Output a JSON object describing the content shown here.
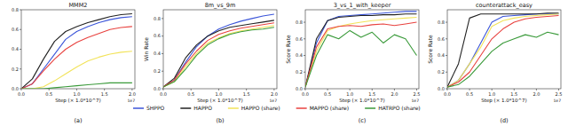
{
  "chart_data": [
    {
      "type": "line",
      "title": "MMM2",
      "subtitle": "(a)",
      "x_label": "Step (× 1.0*10^7)",
      "annotations": [
        "1e7"
      ],
      "x": [
        0,
        0.2,
        0.4,
        0.6,
        0.8,
        1.0,
        1.2,
        1.4,
        1.6,
        1.8,
        2.0
      ],
      "xlim": [
        0,
        2.05
      ],
      "xticks": [
        {
          "value": 0,
          "label": "0.0"
        },
        0.5,
        {
          "value": 1,
          "label": "1.0"
        },
        1.5,
        {
          "value": 2,
          "label": "2.0"
        }
      ],
      "ylim": [
        0,
        0.8
      ],
      "yticks": [
        {
          "value": 0,
          "label": "0.0"
        },
        0.2,
        0.4,
        0.6,
        0.8
      ],
      "grid": false,
      "legend": "bottom",
      "series": [
        {
          "name": "SHPPO",
          "color": "#3b55d9",
          "values": [
            0,
            0.05,
            0.2,
            0.35,
            0.5,
            0.58,
            0.63,
            0.67,
            0.7,
            0.72,
            0.73
          ]
        },
        {
          "name": "HAPPO",
          "color": "#222222",
          "values": [
            0,
            0.1,
            0.3,
            0.48,
            0.58,
            0.63,
            0.67,
            0.7,
            0.73,
            0.75,
            0.76
          ]
        },
        {
          "name": "HAPPO (share)",
          "color": "#f2e35a",
          "values": [
            0,
            0,
            0.02,
            0.08,
            0.15,
            0.22,
            0.28,
            0.32,
            0.35,
            0.37,
            0.38
          ]
        },
        {
          "name": "MAPPO (share)",
          "color": "#e8423f",
          "values": [
            0,
            0.05,
            0.18,
            0.3,
            0.4,
            0.47,
            0.52,
            0.56,
            0.6,
            0.62,
            0.63
          ]
        },
        {
          "name": "HATRPO (share)",
          "color": "#3a9a3a",
          "values": [
            0,
            0,
            0,
            0.01,
            0.02,
            0.03,
            0.04,
            0.05,
            0.06,
            0.06,
            0.06
          ]
        }
      ]
    },
    {
      "type": "line",
      "title": "8m_vs_9m",
      "subtitle": "(b)",
      "x_label": "Step (× 1.0*10^7)",
      "y_label": "Win Rate",
      "annotations": [
        "1e7"
      ],
      "x": [
        0,
        0.2,
        0.4,
        0.6,
        0.8,
        1.0,
        1.2,
        1.4,
        1.6,
        1.8,
        2.0
      ],
      "xlim": [
        0,
        2.05
      ],
      "xticks": [
        {
          "value": 0,
          "label": "0.0"
        },
        0.5,
        {
          "value": 1,
          "label": "1.0"
        },
        1.5,
        {
          "value": 2,
          "label": "2.0"
        }
      ],
      "ylim": [
        0,
        0.9
      ],
      "yticks": [
        {
          "value": 0,
          "label": "0.0"
        },
        0.2,
        0.4,
        0.6,
        0.8
      ],
      "grid": false,
      "series": [
        {
          "name": "SHPPO",
          "color": "#3b55d9",
          "values": [
            0.02,
            0.1,
            0.3,
            0.48,
            0.6,
            0.68,
            0.73,
            0.77,
            0.8,
            0.83,
            0.85
          ]
        },
        {
          "name": "HAPPO",
          "color": "#222222",
          "values": [
            0.02,
            0.12,
            0.35,
            0.5,
            0.6,
            0.66,
            0.7,
            0.72,
            0.74,
            0.76,
            0.78
          ]
        },
        {
          "name": "HAPPO (share)",
          "color": "#f2e35a",
          "values": [
            0.02,
            0.08,
            0.25,
            0.4,
            0.52,
            0.58,
            0.63,
            0.66,
            0.68,
            0.7,
            0.72
          ]
        },
        {
          "name": "MAPPO (share)",
          "color": "#e8423f",
          "values": [
            0.02,
            0.1,
            0.28,
            0.43,
            0.55,
            0.62,
            0.66,
            0.69,
            0.71,
            0.73,
            0.75
          ]
        },
        {
          "name": "HATRPO (share)",
          "color": "#3a9a3a",
          "values": [
            0.02,
            0.08,
            0.22,
            0.38,
            0.5,
            0.57,
            0.62,
            0.65,
            0.67,
            0.68,
            0.7
          ]
        }
      ]
    },
    {
      "type": "line",
      "title": "3_vs_1_with_keeper",
      "subtitle": "(c)",
      "x_label": "Step (× 1.0*10^7)",
      "y_label": "Score Rate",
      "annotations": [
        "1e7"
      ],
      "x": [
        0,
        0.25,
        0.5,
        0.75,
        1.0,
        1.25,
        1.5,
        1.75,
        2.0,
        2.25,
        2.5
      ],
      "xlim": [
        0,
        2.55
      ],
      "xticks": [
        {
          "value": 0,
          "label": "0.0"
        },
        0.5,
        {
          "value": 1,
          "label": "1.0"
        },
        1.5,
        {
          "value": 2,
          "label": "2.0"
        },
        2.5
      ],
      "ylim": [
        0,
        0.95
      ],
      "yticks": [
        {
          "value": 0,
          "label": "0.0"
        },
        0.2,
        0.4,
        0.6,
        0.8
      ],
      "grid": false,
      "series": [
        {
          "name": "SHPPO",
          "color": "#3b55d9",
          "values": [
            0.02,
            0.55,
            0.82,
            0.87,
            0.88,
            0.89,
            0.9,
            0.91,
            0.92,
            0.93,
            0.93
          ]
        },
        {
          "name": "HAPPO",
          "color": "#222222",
          "values": [
            0.02,
            0.6,
            0.82,
            0.86,
            0.87,
            0.88,
            0.88,
            0.89,
            0.89,
            0.9,
            0.9
          ]
        },
        {
          "name": "HAPPO (share)",
          "color": "#f2e35a",
          "values": [
            0.02,
            0.45,
            0.7,
            0.75,
            0.78,
            0.8,
            0.82,
            0.83,
            0.84,
            0.85,
            0.86
          ]
        },
        {
          "name": "MAPPO (share)",
          "color": "#e8423f",
          "values": [
            0.02,
            0.5,
            0.72,
            0.75,
            0.76,
            0.75,
            0.77,
            0.78,
            0.76,
            0.78,
            0.8
          ]
        },
        {
          "name": "HATRPO (share)",
          "color": "#3a9a3a",
          "values": [
            0.02,
            0.4,
            0.65,
            0.6,
            0.7,
            0.62,
            0.68,
            0.55,
            0.65,
            0.6,
            0.4
          ]
        }
      ]
    },
    {
      "type": "line",
      "title": "counterattack_easy",
      "subtitle": "(d)",
      "x_label": "Step (× 1.0*10^7)",
      "y_label": "Score Rate",
      "annotations": [
        "1e7"
      ],
      "x": [
        0,
        0.25,
        0.5,
        0.75,
        1.0,
        1.25,
        1.5,
        1.75,
        2.0,
        2.25,
        2.5
      ],
      "xlim": [
        0,
        2.55
      ],
      "xticks": [
        {
          "value": 0,
          "label": "0.0"
        },
        0.5,
        {
          "value": 1,
          "label": "1.0"
        },
        1.5,
        {
          "value": 2,
          "label": "2.0"
        },
        2.5
      ],
      "ylim": [
        0,
        0.95
      ],
      "yticks": [
        {
          "value": 0,
          "label": "0.0"
        },
        0.2,
        0.4,
        0.6,
        0.8
      ],
      "grid": false,
      "series": [
        {
          "name": "SHPPO",
          "color": "#3b55d9",
          "values": [
            0.02,
            0.1,
            0.3,
            0.55,
            0.8,
            0.87,
            0.88,
            0.89,
            0.9,
            0.9,
            0.9
          ]
        },
        {
          "name": "HAPPO",
          "color": "#222222",
          "values": [
            0.02,
            0.3,
            0.85,
            0.9,
            0.9,
            0.9,
            0.9,
            0.9,
            0.9,
            0.91,
            0.91
          ]
        },
        {
          "name": "HAPPO (share)",
          "color": "#f2e35a",
          "values": [
            0.02,
            0.1,
            0.3,
            0.5,
            0.75,
            0.82,
            0.85,
            0.87,
            0.88,
            0.89,
            0.9
          ]
        },
        {
          "name": "MAPPO (share)",
          "color": "#e8423f",
          "values": [
            0.02,
            0.08,
            0.2,
            0.4,
            0.6,
            0.72,
            0.8,
            0.84,
            0.86,
            0.87,
            0.88
          ]
        },
        {
          "name": "HATRPO (share)",
          "color": "#3a9a3a",
          "values": [
            0.02,
            0.05,
            0.15,
            0.3,
            0.45,
            0.55,
            0.6,
            0.65,
            0.62,
            0.68,
            0.65
          ]
        }
      ]
    }
  ]
}
